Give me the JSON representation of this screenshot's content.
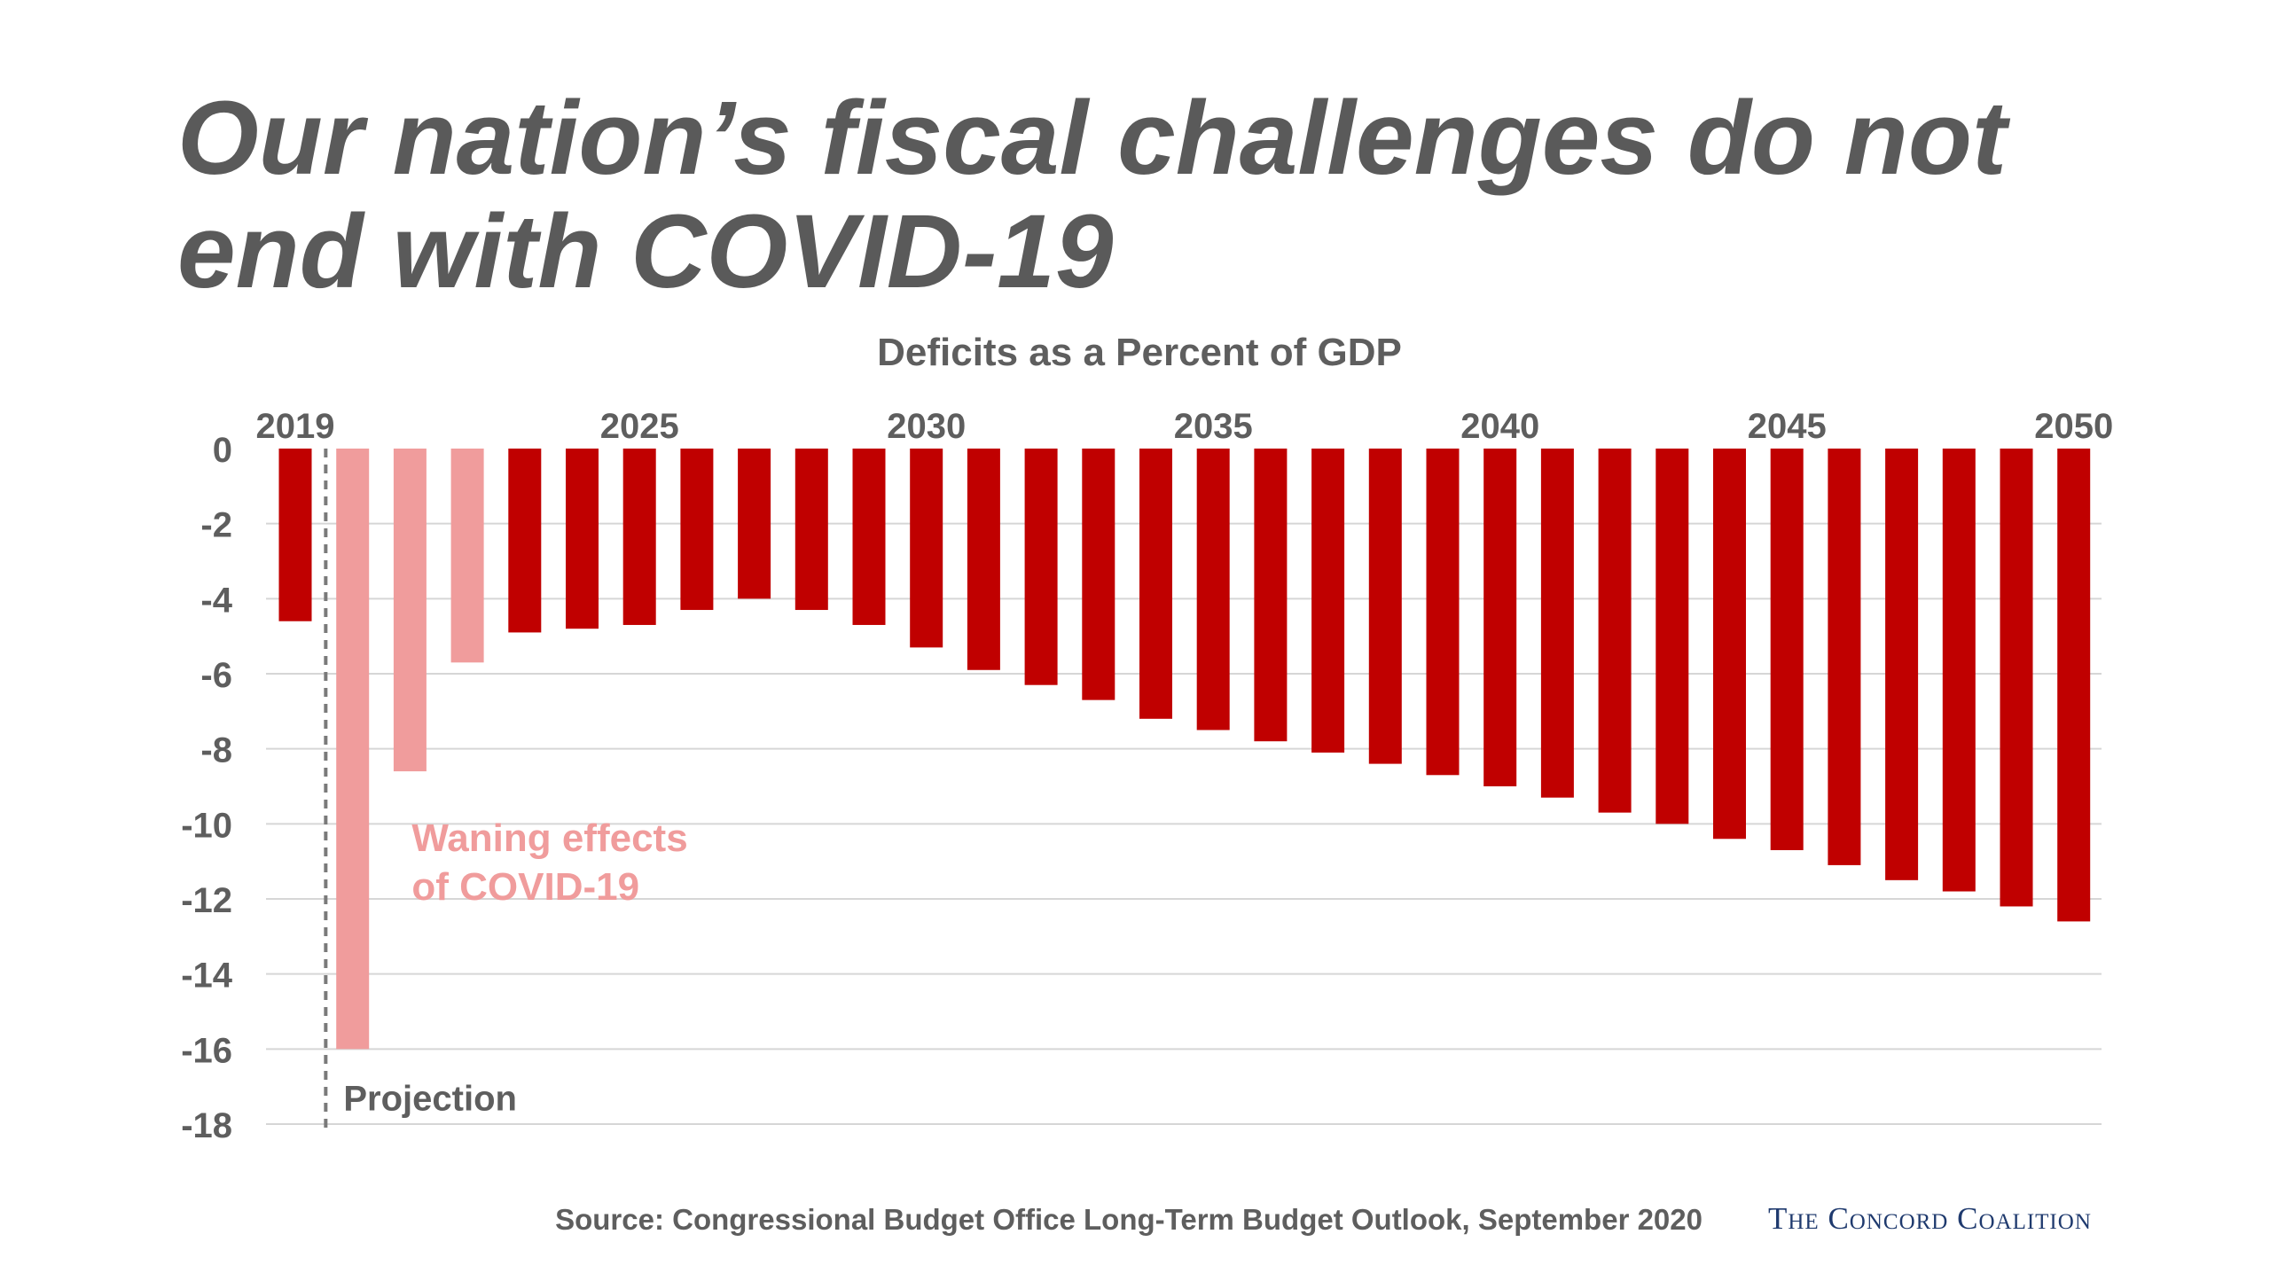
{
  "slide": {
    "title": "Our nation’s fiscal challenges do not end with COVID-19",
    "source": "Source: Congressional Budget Office Long-Term Budget Outlook, September 2020",
    "logo": "The Concord Coalition"
  },
  "colors": {
    "title": "#5a5a5a",
    "bar_actual_projected": "#c00000",
    "bar_covid": "#f09c9c",
    "annotation_covid": "#f09c9c",
    "grid": "#d6d6d6",
    "axis_text": "#5e5e5e",
    "logo": "#1f3a6e"
  },
  "chart_data": {
    "type": "bar",
    "title": "Deficits as a Percent of GDP",
    "xlabel": "",
    "ylabel": "",
    "ylim": [
      -18,
      0
    ],
    "yticks": [
      0,
      -2,
      -4,
      -6,
      -8,
      -10,
      -12,
      -14,
      -16,
      -18
    ],
    "grid": true,
    "x_axis_position": "top",
    "x_tick_labels": [
      "2019",
      "2025",
      "2030",
      "2035",
      "2040",
      "2045",
      "2050"
    ],
    "categories": [
      "2019",
      "2020",
      "2021",
      "2022",
      "2023",
      "2024",
      "2025",
      "2026",
      "2027",
      "2028",
      "2029",
      "2030",
      "2031",
      "2032",
      "2033",
      "2034",
      "2035",
      "2036",
      "2037",
      "2038",
      "2039",
      "2040",
      "2041",
      "2042",
      "2043",
      "2044",
      "2045",
      "2046",
      "2047",
      "2048",
      "2049",
      "2050"
    ],
    "values": [
      -4.6,
      -16.0,
      -8.6,
      -5.7,
      -4.9,
      -4.8,
      -4.7,
      -4.3,
      -4.0,
      -4.3,
      -4.7,
      -5.3,
      -5.9,
      -6.3,
      -6.7,
      -7.2,
      -7.5,
      -7.8,
      -8.1,
      -8.4,
      -8.7,
      -9.0,
      -9.3,
      -9.7,
      -10.0,
      -10.4,
      -10.7,
      -11.1,
      -11.5,
      -11.8,
      -12.2,
      -12.6
    ],
    "highlight": {
      "categories": [
        "2020",
        "2021",
        "2022"
      ],
      "label_line1": "Waning effects",
      "label_line2": "of COVID-19"
    },
    "projection": {
      "boundary_between": [
        "2019",
        "2020"
      ],
      "label": "Projection"
    }
  }
}
